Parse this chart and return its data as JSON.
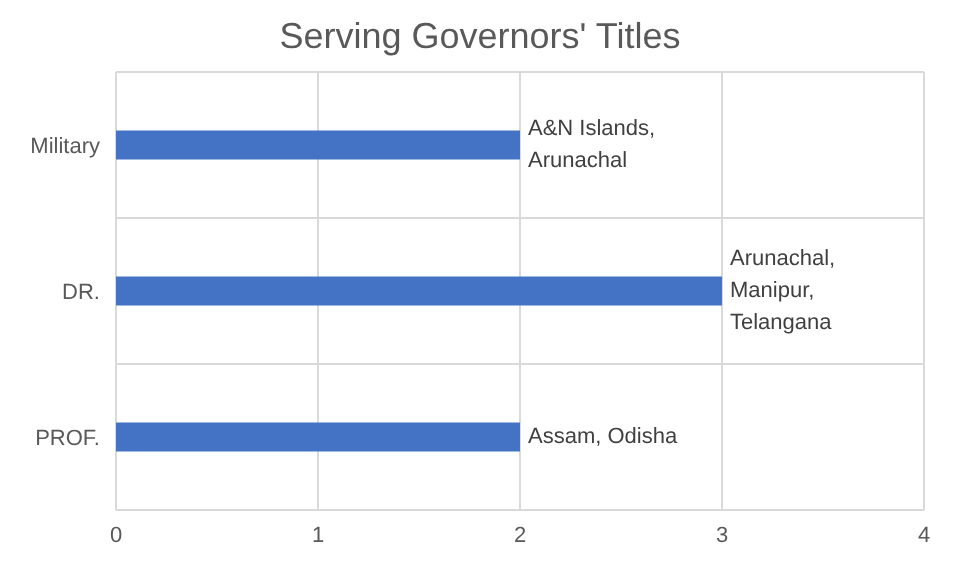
{
  "chart_data": {
    "type": "bar",
    "orientation": "horizontal",
    "title": "Serving Governors' Titles",
    "categories": [
      "Military",
      "DR.",
      "PROF."
    ],
    "values": [
      2,
      3,
      2
    ],
    "color": "#4472c4",
    "value_labels": [
      "A&N Islands, Arunachal",
      "Arunachal, Manipur, Telangana",
      "Assam, Odisha"
    ],
    "xlim": [
      0,
      4
    ],
    "xticks": [
      0,
      1,
      2,
      3,
      4
    ],
    "grid": true,
    "legend": false
  }
}
